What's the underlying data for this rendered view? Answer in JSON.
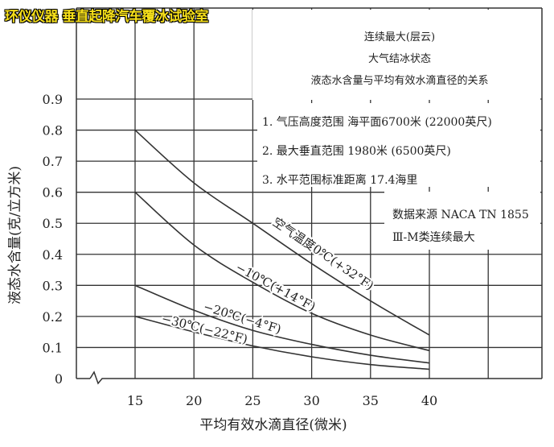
{
  "overlay_title": "环仪仪器 垂直起降汽车覆冰试验室",
  "chart_data": {
    "type": "line",
    "title_lines": [
      "连续最大(层云)",
      "大气结冰状态",
      "液态水含量与平均有效水滴直径的关系"
    ],
    "notes": [
      "1. 气压高度范围 海平面6700米 (22000英尺)",
      "2. 最大垂直范围 1980米 (6500英尺)",
      "3. 水平范围标准距离 17.4海里"
    ],
    "source_lines": [
      "数据来源 NACA TN 1855",
      "Ⅲ-M类连续最大"
    ],
    "xlabel": "平均有效水滴直径(微米)",
    "ylabel": "液态水含量(克/立方米)",
    "xlim": [
      15,
      40
    ],
    "ylim": [
      0,
      0.9
    ],
    "x_ticks": [
      "15",
      "20",
      "25",
      "30",
      "35",
      "40"
    ],
    "y_ticks": [
      "0",
      "0.1",
      "0.2",
      "0.3",
      "0.4",
      "0.5",
      "0.6",
      "0.7",
      "0.8",
      "0.9"
    ],
    "grid": true,
    "x": [
      15,
      20,
      25,
      30,
      35,
      40
    ],
    "series": [
      {
        "name": "空气温度0℃(+32°F)",
        "values": [
          0.8,
          0.63,
          0.5,
          0.37,
          0.25,
          0.14
        ]
      },
      {
        "name": "−10℃(+14°F)",
        "values": [
          0.6,
          0.43,
          0.31,
          0.21,
          0.14,
          0.09
        ]
      },
      {
        "name": "−20℃(−4°F)",
        "values": [
          0.3,
          0.22,
          0.155,
          0.11,
          0.075,
          0.05
        ]
      },
      {
        "name": "−30℃(−22°F)",
        "values": [
          0.2,
          0.15,
          0.105,
          0.07,
          0.045,
          0.03
        ]
      }
    ],
    "line_color": "#333333"
  }
}
